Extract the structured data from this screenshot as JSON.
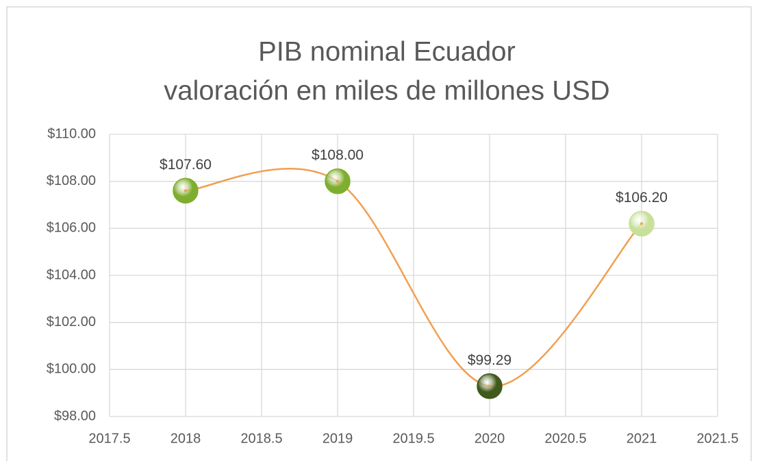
{
  "chart_data": {
    "type": "scatter-smooth",
    "title": "PIB nominal Ecuador",
    "subtitle": "valoración en miles de millones USD",
    "x": [
      2018,
      2019,
      2020,
      2021
    ],
    "values": [
      107.6,
      108.0,
      99.29,
      106.2
    ],
    "value_labels": [
      "$107.60",
      "$108.00",
      "$99.29",
      "$106.20"
    ],
    "line_color": "#f0a050",
    "marker_colors": [
      "#7fae2e",
      "#7fae2e",
      "#3f5a1a",
      "#c8e09a"
    ],
    "xlim": [
      2017.5,
      2021.5
    ],
    "xticks": [
      2017.5,
      2018,
      2018.5,
      2019,
      2019.5,
      2020,
      2020.5,
      2021,
      2021.5
    ],
    "ylim": [
      98,
      110
    ],
    "yticks": [
      {
        "value": 98,
        "label": "$98.00"
      },
      {
        "value": 100,
        "label": "$100.00"
      },
      {
        "value": 102,
        "label": "$102.00"
      },
      {
        "value": 104,
        "label": "$104.00"
      },
      {
        "value": 106,
        "label": "$106.00"
      },
      {
        "value": 108,
        "label": "$108.00"
      },
      {
        "value": 110,
        "label": "$110.00"
      }
    ],
    "grid": true
  }
}
